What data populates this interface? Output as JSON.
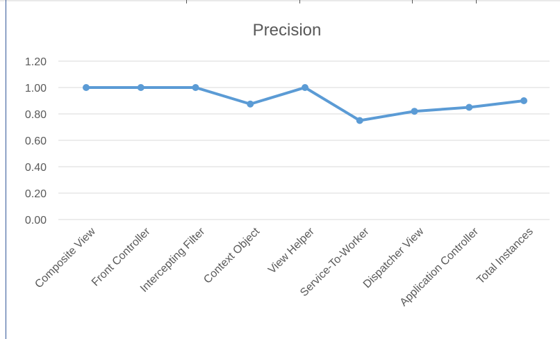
{
  "chart_data": {
    "type": "line",
    "title": "Precision",
    "xlabel": "",
    "ylabel": "",
    "categories": [
      "Composite View",
      "Front Controller",
      "Intercepting Filter",
      "Context Object",
      "View Helper",
      "Service-To-Worker",
      "Dispatcher View",
      "Application Controller",
      "Total  Instances"
    ],
    "series": [
      {
        "values": [
          1.0,
          1.0,
          1.0,
          0.875,
          1.0,
          0.75,
          0.82,
          0.85,
          0.9
        ]
      }
    ],
    "yticks": [
      "0.00",
      "0.20",
      "0.40",
      "0.60",
      "0.80",
      "1.00",
      "1.20"
    ],
    "ylim": [
      0,
      1.2
    ],
    "grid": true,
    "legend": "none",
    "colors": {
      "line": "#5b9bd5",
      "grid": "#d9d9d9",
      "text": "#595959",
      "title": "#595959"
    }
  }
}
